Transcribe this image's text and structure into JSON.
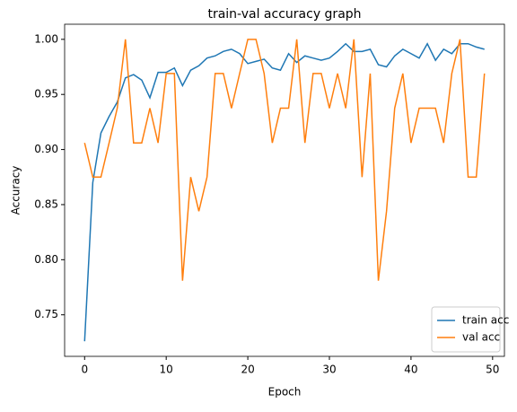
{
  "chart_data": {
    "type": "line",
    "title": "train-val accuracy graph",
    "xlabel": "Epoch",
    "ylabel": "Accuracy",
    "x": [
      0,
      1,
      2,
      3,
      4,
      5,
      6,
      7,
      8,
      9,
      10,
      11,
      12,
      13,
      14,
      15,
      16,
      17,
      18,
      19,
      20,
      21,
      22,
      23,
      24,
      25,
      26,
      27,
      28,
      29,
      30,
      31,
      32,
      33,
      34,
      35,
      36,
      37,
      38,
      39,
      40,
      41,
      42,
      43,
      44,
      45,
      46,
      47,
      48,
      49
    ],
    "series": [
      {
        "name": "train acc",
        "color": "#1f77b4",
        "values": [
          0.726,
          0.87,
          0.915,
          0.93,
          0.943,
          0.965,
          0.968,
          0.963,
          0.947,
          0.97,
          0.97,
          0.974,
          0.958,
          0.972,
          0.976,
          0.983,
          0.985,
          0.989,
          0.991,
          0.987,
          0.978,
          0.98,
          0.982,
          0.974,
          0.972,
          0.987,
          0.979,
          0.985,
          0.983,
          0.981,
          0.983,
          0.989,
          0.996,
          0.989,
          0.989,
          0.991,
          0.977,
          0.975,
          0.985,
          0.991,
          0.987,
          0.983,
          0.996,
          0.981,
          0.991,
          0.987,
          0.996,
          0.996,
          0.993,
          0.991
        ]
      },
      {
        "name": "val acc",
        "color": "#ff7f0e",
        "values": [
          0.906,
          0.875,
          0.875,
          0.906,
          0.9375,
          1.0,
          0.906,
          0.906,
          0.9375,
          0.906,
          0.969,
          0.969,
          0.781,
          0.875,
          0.844,
          0.875,
          0.969,
          0.969,
          0.9375,
          0.969,
          1.0,
          1.0,
          0.969,
          0.906,
          0.9375,
          0.9375,
          1.0,
          0.906,
          0.969,
          0.969,
          0.9375,
          0.969,
          0.9375,
          1.0,
          0.875,
          0.969,
          0.781,
          0.844,
          0.9375,
          0.969,
          0.906,
          0.9375,
          0.9375,
          0.9375,
          0.906,
          0.969,
          1.0,
          0.875,
          0.875,
          0.969
        ]
      }
    ],
    "xlim": [
      -2.45,
      51.45
    ],
    "ylim": [
      0.7123,
      1.0137
    ],
    "xticks": [
      0,
      10,
      20,
      30,
      40,
      50
    ],
    "yticks": [
      0.75,
      {
        "value": 0.8,
        "label": "0.80"
      },
      0.85,
      {
        "value": 0.9,
        "label": "0.90"
      },
      0.95,
      {
        "value": 1.0,
        "label": "1.00"
      }
    ],
    "grid": false,
    "legend": "lower right"
  }
}
